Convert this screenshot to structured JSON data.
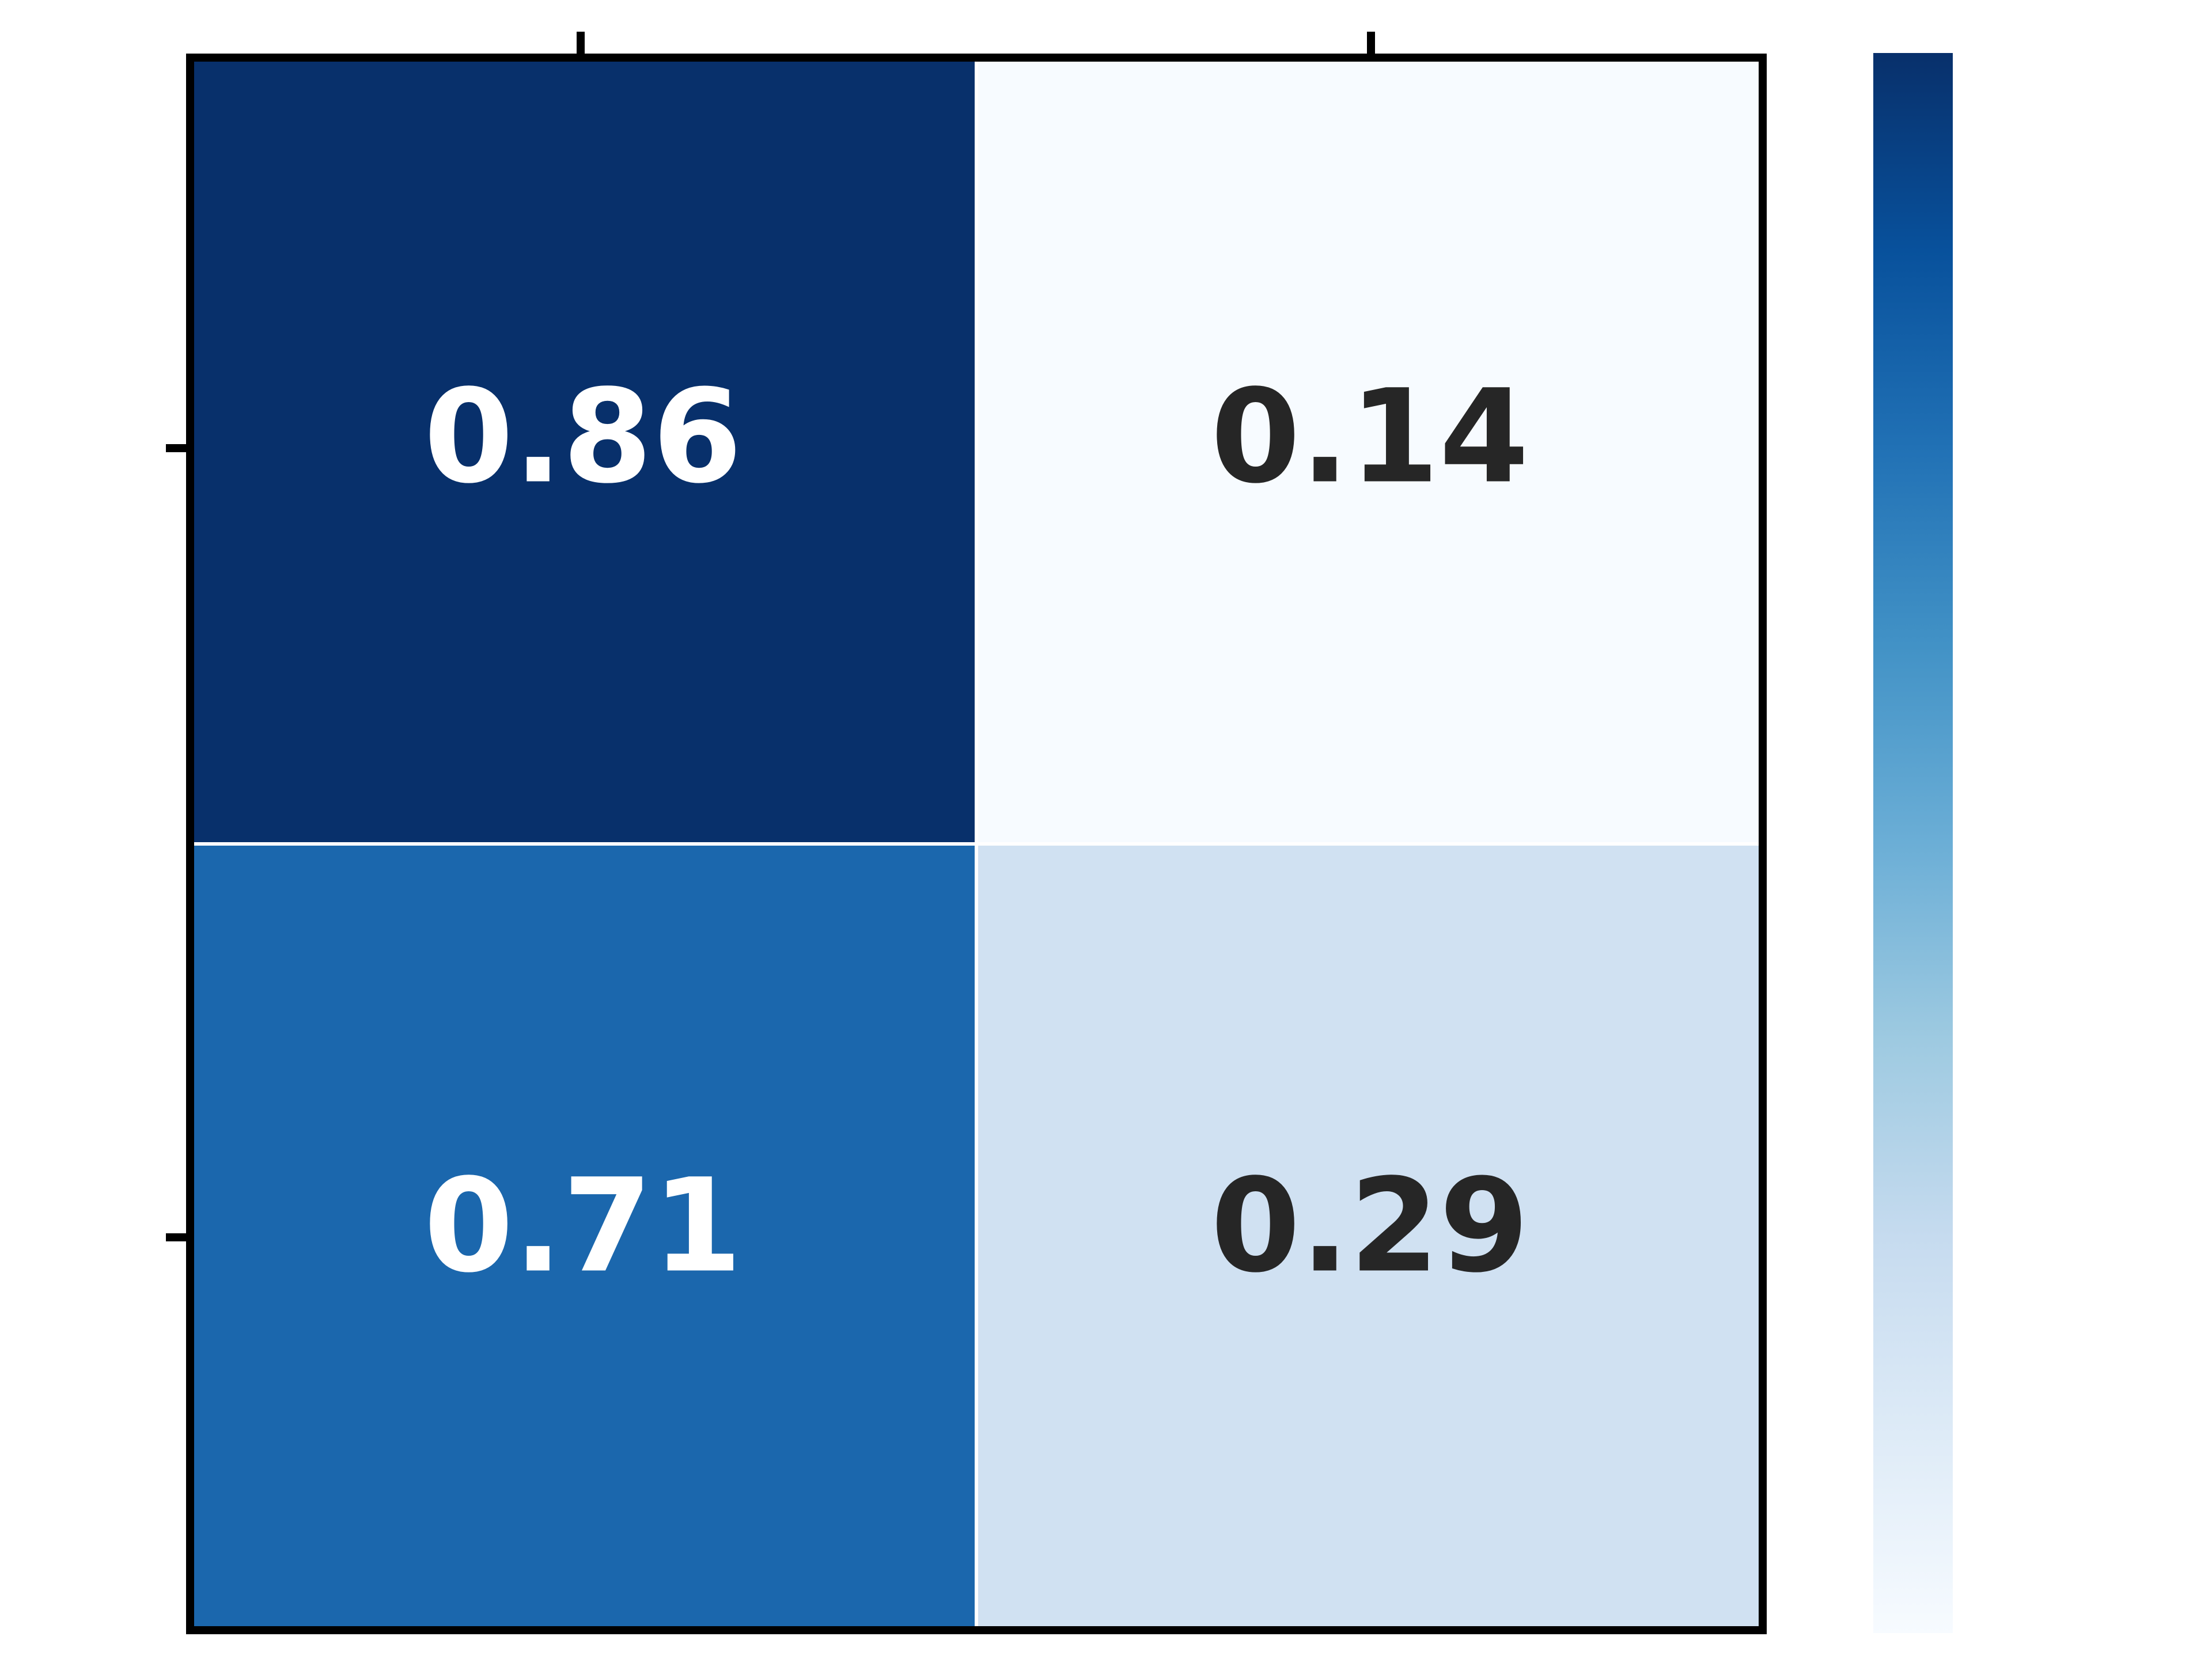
{
  "chart_data": {
    "type": "heatmap",
    "title": "",
    "xlabel": "",
    "ylabel": "",
    "x_categories": [
      "",
      ""
    ],
    "y_categories": [
      "",
      ""
    ],
    "values": [
      [
        0.86,
        0.14
      ],
      [
        0.71,
        0.29
      ]
    ],
    "value_labels": [
      [
        "0.86",
        "0.14"
      ],
      [
        "0.71",
        "0.29"
      ]
    ],
    "cell_colors": [
      [
        "#08306b",
        "#f7fbff"
      ],
      [
        "#1b67ad",
        "#d0e1f2"
      ]
    ],
    "label_colors": [
      [
        "#ffffff",
        "#262626"
      ],
      [
        "#ffffff",
        "#262626"
      ]
    ],
    "colorscale": "Blues",
    "colorscale_stops": [
      "#f7fbff",
      "#deebf7",
      "#c6dbef",
      "#9ecae1",
      "#6baed6",
      "#4292c6",
      "#2171b5",
      "#08519c",
      "#08306b"
    ],
    "vmin": 0.14,
    "vmax": 0.86,
    "colorbar": true,
    "grid": false,
    "legend": "none"
  }
}
